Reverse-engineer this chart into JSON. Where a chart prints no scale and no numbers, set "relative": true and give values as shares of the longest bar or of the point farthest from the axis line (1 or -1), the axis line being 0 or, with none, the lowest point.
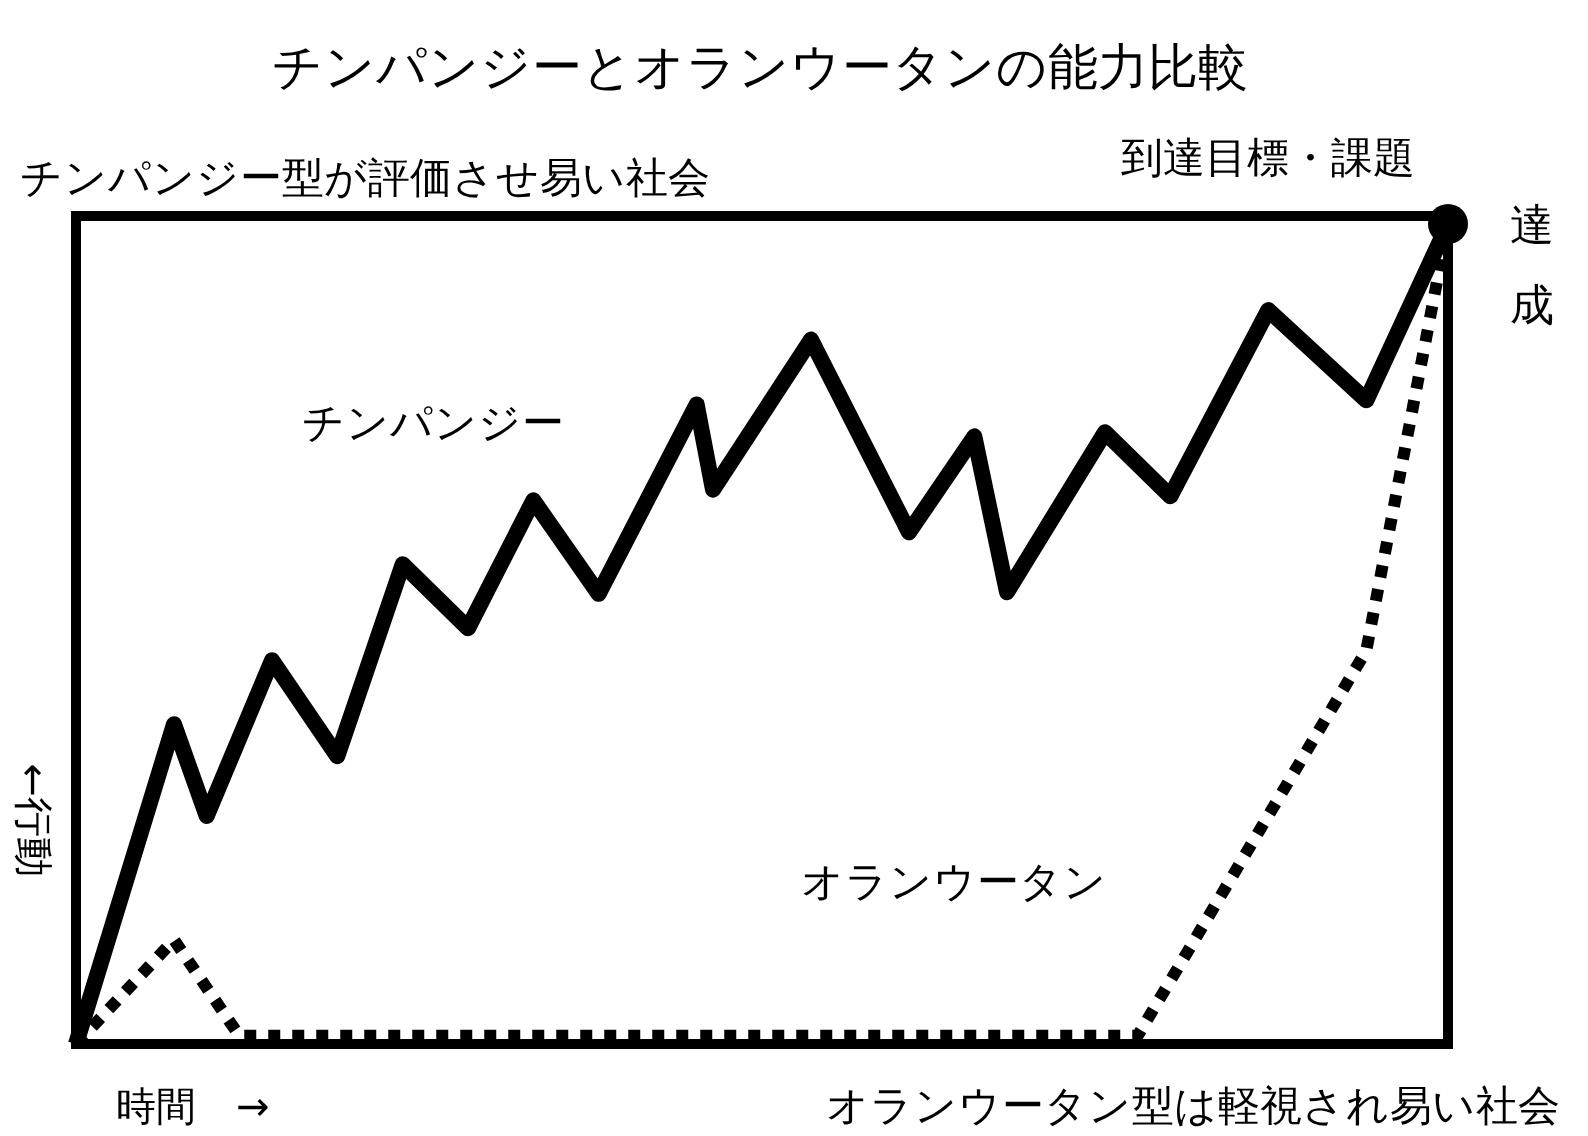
{
  "chart_data": {
    "type": "line",
    "title": "チンパンジーとオランウータンの能力比較",
    "xlabel": "時間　→",
    "ylabel": "←行動",
    "relative": true,
    "grid": false,
    "legend": false,
    "categories": [
      null,
      null,
      null,
      null,
      null,
      null,
      null,
      null,
      null,
      null,
      null,
      null,
      null,
      null,
      null,
      null,
      null,
      null,
      null,
      null,
      null,
      null,
      null,
      null,
      null,
      null,
      null,
      null,
      null,
      null,
      null,
      null,
      null,
      null,
      null,
      null,
      null,
      null,
      null,
      null,
      null,
      null,
      null,
      null,
      null,
      null,
      null,
      null,
      null,
      null,
      null,
      null,
      null,
      null,
      null,
      null,
      null,
      null,
      null,
      null,
      null,
      null,
      null,
      null,
      null,
      null,
      null,
      null,
      null,
      null,
      null,
      null,
      null,
      null,
      null,
      null,
      null,
      null,
      null,
      null,
      null,
      null,
      null,
      null,
      null
    ],
    "series": [
      {
        "name": "チンパンジー",
        "color": "#000000",
        "line_style": "solid",
        "values": [
          0,
          null,
          null,
          null,
          null,
          null,
          0.39,
          null,
          0.278,
          null,
          null,
          null,
          0.468,
          null,
          null,
          null,
          0.351,
          null,
          null,
          null,
          0.585,
          null,
          null,
          null,
          0.507,
          null,
          null,
          null,
          0.663,
          null,
          null,
          null,
          0.549,
          null,
          null,
          null,
          null,
          null,
          0.78,
          0.676,
          null,
          null,
          null,
          null,
          null,
          0.859,
          null,
          null,
          null,
          null,
          null,
          0.624,
          null,
          null,
          null,
          0.741,
          null,
          0.551,
          null,
          null,
          null,
          null,
          null,
          0.746,
          null,
          null,
          null,
          0.668,
          null,
          null,
          null,
          null,
          null,
          0.895,
          null,
          null,
          null,
          null,
          null,
          0.785,
          null,
          null,
          null,
          null,
          1
        ]
      },
      {
        "name": "オランウータン",
        "color": "#000000",
        "line_style": "dotted",
        "values": [
          0,
          null,
          null,
          null,
          null,
          null,
          0.127,
          null,
          null,
          null,
          0.01,
          null,
          null,
          null,
          null,
          null,
          null,
          null,
          null,
          null,
          null,
          null,
          null,
          null,
          null,
          null,
          null,
          null,
          null,
          null,
          null,
          null,
          null,
          null,
          null,
          null,
          null,
          null,
          null,
          null,
          null,
          null,
          null,
          null,
          null,
          null,
          null,
          null,
          null,
          null,
          null,
          null,
          null,
          null,
          null,
          null,
          null,
          null,
          null,
          null,
          null,
          null,
          null,
          null,
          null,
          0.01,
          null,
          null,
          null,
          null,
          null,
          null,
          null,
          null,
          null,
          null,
          null,
          null,
          null,
          0.48,
          null,
          null,
          null,
          null,
          1
        ]
      }
    ],
    "annotations": [
      "チンパンジー型が評価させ易い社会",
      "到達目標・課題",
      "達成",
      "オランウータン型は軽視され易い社会"
    ]
  }
}
